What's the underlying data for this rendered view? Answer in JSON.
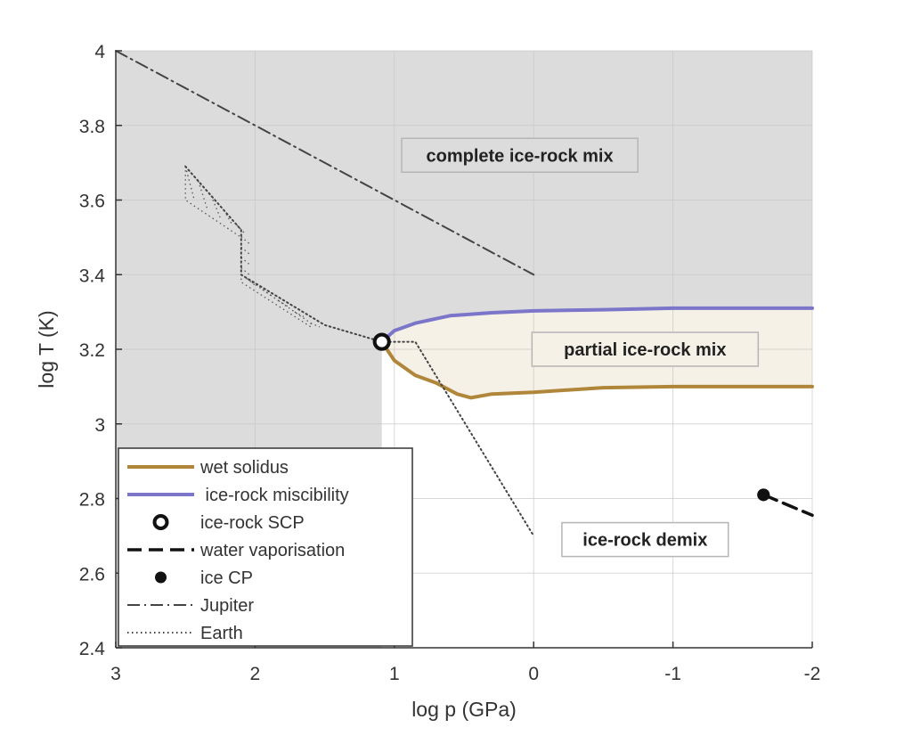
{
  "chart_data": {
    "type": "line",
    "xlabel": "log p (GPa)",
    "ylabel": "log T (K)",
    "xlim": [
      3,
      -2
    ],
    "ylim": [
      2.4,
      4
    ],
    "x_reversed": true,
    "xticks": [
      3,
      2,
      1,
      0,
      -1,
      -2
    ],
    "xtick_labels": [
      "3",
      "2",
      "1",
      "0",
      "-1",
      "-2"
    ],
    "yticks": [
      2.4,
      2.6,
      2.8,
      3,
      3.2,
      3.4,
      3.6,
      3.8,
      4
    ],
    "ytick_labels": [
      "2.4",
      "2.6",
      "2.8",
      "3",
      "3.2",
      "3.4",
      "3.6",
      "3.8",
      "4"
    ],
    "grid": true,
    "legend_position": "bottom-left",
    "regions": [
      {
        "name": "complete ice-rock mix",
        "label": "complete ice-rock mix",
        "label_at": [
          0.1,
          3.72
        ],
        "color": "#dcdcdc"
      },
      {
        "name": "partial ice-rock mix",
        "label": "partial ice-rock mix",
        "label_at": [
          -0.8,
          3.2
        ],
        "color": "#f6f1e6"
      },
      {
        "name": "ice-rock demix",
        "label": "ice-rock demix",
        "label_at": [
          -0.8,
          2.69
        ],
        "color": "#ffffff"
      }
    ],
    "series": [
      {
        "name": "wet solidus",
        "style": "solid",
        "color": "#b0873a",
        "x": [
          1.09,
          1.0,
          0.85,
          0.7,
          0.55,
          0.45,
          0.3,
          0.0,
          -0.5,
          -1.0,
          -1.5,
          -2.0
        ],
        "y": [
          3.22,
          3.17,
          3.13,
          3.11,
          3.08,
          3.07,
          3.08,
          3.085,
          3.097,
          3.1,
          3.1,
          3.1
        ]
      },
      {
        "name": "ice-rock miscibility",
        "style": "solid",
        "color": "#7b76c9",
        "x": [
          1.09,
          1.0,
          0.85,
          0.6,
          0.3,
          0.0,
          -0.5,
          -1.0,
          -1.5,
          -2.0
        ],
        "y": [
          3.22,
          3.25,
          3.27,
          3.29,
          3.298,
          3.303,
          3.306,
          3.31,
          3.31,
          3.31
        ]
      },
      {
        "name": "ice-rock SCP",
        "style": "marker-open",
        "color": "#111111",
        "x": [
          1.09
        ],
        "y": [
          3.22
        ]
      },
      {
        "name": "water vaporisation",
        "style": "dashed",
        "color": "#111111",
        "x": [
          -1.65,
          -2.0
        ],
        "y": [
          2.81,
          2.755
        ]
      },
      {
        "name": "ice CP",
        "style": "marker-filled",
        "color": "#111111",
        "x": [
          -1.65
        ],
        "y": [
          2.81
        ]
      },
      {
        "name": "Jupiter",
        "style": "dashdot",
        "color": "#444444",
        "x": [
          3.0,
          0.0
        ],
        "y": [
          4.0,
          3.4
        ]
      },
      {
        "name": "Earth",
        "style": "dotted",
        "color": "#444444",
        "x": [
          2.5,
          2.1,
          2.1,
          1.5,
          1.09,
          0.85,
          0.0
        ],
        "y": [
          3.69,
          3.52,
          3.4,
          3.265,
          3.22,
          3.22,
          2.7
        ]
      }
    ],
    "earth_band": {
      "upper": {
        "x": [
          2.5,
          2.1,
          2.1,
          1.6
        ],
        "y": [
          3.69,
          3.52,
          3.4,
          3.27
        ]
      },
      "lower": {
        "x": [
          2.5,
          2.1,
          2.1,
          1.6
        ],
        "y": [
          3.6,
          3.5,
          3.38,
          3.26
        ]
      }
    },
    "legend": [
      {
        "label": "wet solidus",
        "style": "solid",
        "color": "#b0873a"
      },
      {
        "label": " ice-rock miscibility",
        "style": "solid",
        "color": "#7b76c9"
      },
      {
        "label": "ice-rock SCP",
        "style": "marker-open",
        "color": "#111111"
      },
      {
        "label": "water vaporisation",
        "style": "dashed",
        "color": "#111111"
      },
      {
        "label": "ice CP",
        "style": "marker-filled",
        "color": "#111111"
      },
      {
        "label": "Jupiter",
        "style": "dashdot",
        "color": "#444444"
      },
      {
        "label": "Earth",
        "style": "dotted",
        "color": "#444444"
      }
    ]
  }
}
